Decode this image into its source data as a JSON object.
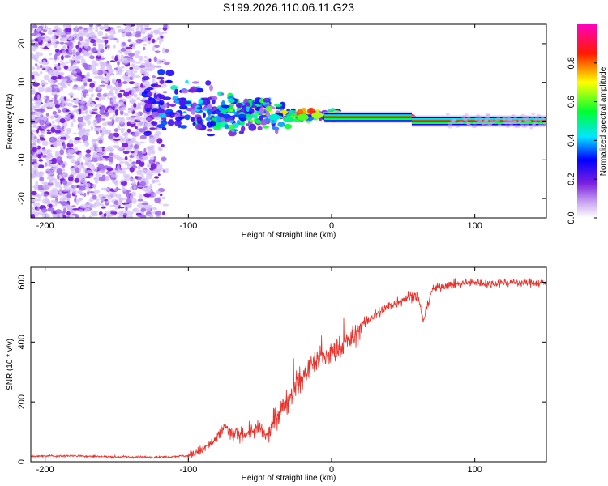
{
  "chart_data": [
    {
      "type": "heatmap",
      "title": "S199.2026.110.06.11.G23",
      "xlabel": "Height of straight line (km)",
      "ylabel": "Frequency (Hz)",
      "xlim": [
        -210,
        150
      ],
      "ylim": [
        -25,
        25
      ],
      "xticks": [
        -200,
        -100,
        0,
        100
      ],
      "yticks": [
        -20,
        -10,
        0,
        10,
        20
      ],
      "colorbar": {
        "label": "Normalized spectral amplitude",
        "range": [
          0,
          1
        ],
        "ticks": [
          "0.0",
          "0.2",
          "0.4",
          "0.6",
          "0.8"
        ],
        "colors": [
          "#ffffff",
          "#8a2be2",
          "#0000ff",
          "#00ffff",
          "#00ff00",
          "#ffff00",
          "#ff0000",
          "#ff00ff"
        ]
      },
      "signal_track": [
        {
          "x": -110,
          "freq": 8,
          "amp": 0.15
        },
        {
          "x": -100,
          "freq": 5,
          "amp": 0.2
        },
        {
          "x": -90,
          "freq": 3,
          "amp": 0.25
        },
        {
          "x": -80,
          "freq": 2,
          "amp": 0.28
        },
        {
          "x": -70,
          "freq": 1,
          "amp": 0.3
        },
        {
          "x": -60,
          "freq": 2,
          "amp": 0.3
        },
        {
          "x": -50,
          "freq": 3,
          "amp": 0.35
        },
        {
          "x": -40,
          "freq": 1,
          "amp": 0.45
        },
        {
          "x": -30,
          "freq": 0.5,
          "amp": 0.5
        },
        {
          "x": -20,
          "freq": 1,
          "amp": 0.6
        },
        {
          "x": -10,
          "freq": 1.5,
          "amp": 0.65
        },
        {
          "x": 0,
          "freq": 1.5,
          "amp": 0.7
        },
        {
          "x": 10,
          "freq": 1.2,
          "amp": 0.8
        },
        {
          "x": 30,
          "freq": 1,
          "amp": 0.85
        },
        {
          "x": 55,
          "freq": 1,
          "amp": 0.9
        },
        {
          "x": 60,
          "freq": 0,
          "amp": 0.75
        },
        {
          "x": 80,
          "freq": 0,
          "amp": 0.85
        },
        {
          "x": 100,
          "freq": 0,
          "amp": 0.95
        },
        {
          "x": 120,
          "freq": 0,
          "amp": 0.9
        },
        {
          "x": 150,
          "freq": 0,
          "amp": 0.88
        }
      ]
    },
    {
      "type": "line",
      "xlabel": "Height of straight line (km)",
      "ylabel": "SNR (10 * v/v)",
      "xlim": [
        -210,
        150
      ],
      "ylim": [
        0,
        650
      ],
      "xticks": [
        -200,
        -100,
        0,
        100
      ],
      "yticks": [
        0,
        200,
        400,
        600
      ],
      "series": [
        {
          "name": "SNR",
          "color": "#e8312a",
          "x": [
            -210,
            -180,
            -150,
            -120,
            -100,
            -90,
            -80,
            -75,
            -70,
            -60,
            -50,
            -45,
            -40,
            -30,
            -25,
            -20,
            -15,
            -10,
            -5,
            0,
            5,
            10,
            15,
            20,
            30,
            40,
            50,
            60,
            64,
            70,
            80,
            90,
            100,
            110,
            120,
            130,
            140,
            150
          ],
          "values": [
            18,
            20,
            16,
            15,
            20,
            40,
            75,
            120,
            90,
            95,
            110,
            80,
            140,
            210,
            260,
            280,
            320,
            340,
            350,
            360,
            375,
            400,
            410,
            450,
            490,
            520,
            545,
            560,
            470,
            575,
            590,
            595,
            600,
            595,
            600,
            598,
            600,
            595
          ]
        }
      ]
    }
  ]
}
